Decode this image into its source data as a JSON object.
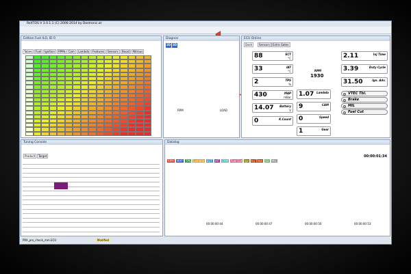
{
  "window": {
    "title": "ReXTOS V 3.0.1.1 (C) 2006-2014 by Dostronic.at"
  },
  "fuel_panel": {
    "title": "Edition Fuel ILO, ID 0",
    "tabs": [
      "Tables",
      "Fuel",
      "Ignition",
      "RPMs / Cam",
      "Lambda",
      "Features",
      "Sensors",
      "Boost",
      "Nitrous"
    ]
  },
  "graph_panel": {
    "title": "Diagnos",
    "buttons": [
      "2D",
      "3D"
    ],
    "axis_labels": [
      "RPM",
      "LOAD"
    ]
  },
  "ecu_panel": {
    "title": "ECU Online",
    "tabs": [
      "Dash",
      "Sensors",
      "Extra Gates"
    ],
    "gauges": [
      {
        "value": "88",
        "label": "ECT",
        "unit": "°C"
      },
      {
        "value": "33",
        "label": "IAT",
        "unit": "°C"
      },
      {
        "value": "2",
        "label": "TPS",
        "unit": "%"
      },
      {
        "value": "430",
        "label": "MAP",
        "unit": "mBar"
      },
      {
        "value": "14.07",
        "label": "Battery",
        "unit": "V"
      },
      {
        "value": "0",
        "label": "K.Count",
        "unit": ""
      }
    ],
    "center_gauges": [
      {
        "value": "1.07",
        "label": "Lambda"
      },
      {
        "value": "9",
        "label": "CAM"
      },
      {
        "value": "0",
        "label": "Speed"
      },
      {
        "value": "1",
        "label": "Gear"
      }
    ],
    "rpm": {
      "label": "RPM",
      "value": "1930"
    },
    "right_gauges": [
      {
        "value": "2.11",
        "label": "Inj Time"
      },
      {
        "value": "3.39",
        "label": "Duty Cycle"
      },
      {
        "value": "31.50",
        "label": "Ign. Adv."
      }
    ],
    "indicators": [
      "VTEC Tbl.",
      "Brake",
      "MIL",
      "Fuel Cut"
    ]
  },
  "console": {
    "title": "Tuning Console",
    "tabs": [
      "Product",
      "Target"
    ]
  },
  "datalog": {
    "title": "Datalog",
    "time": "00:00:01:34",
    "channels": [
      "RPM",
      "MAP",
      "TPS",
      "Lambda",
      "ECT",
      "IAT",
      "CAM",
      "Fuel Cut",
      "Ign",
      "Inj Time",
      "O2",
      "MIL"
    ],
    "timestamps": [
      "00:00:00:44",
      "00:00:00:47",
      "00:00:00:50",
      "00:00:00:53"
    ]
  },
  "status": {
    "file": "PRA_pro_check_mm.ECU",
    "state": "Modified"
  }
}
